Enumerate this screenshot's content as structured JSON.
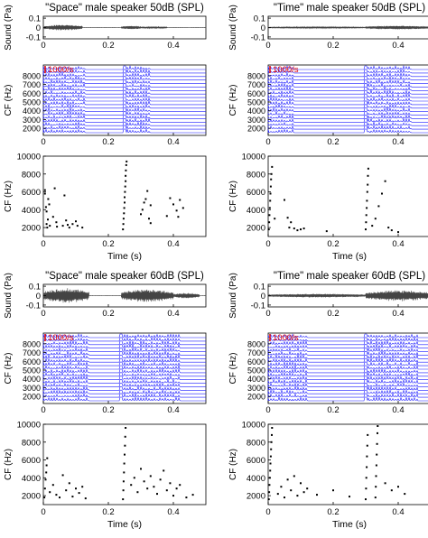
{
  "colors": {
    "waveform": "#444444",
    "rate": "#1a1aff",
    "spike": "#000000",
    "scalebar": "#e00000",
    "axis": "#000000"
  },
  "chart_data": [
    {
      "type": "figure-column",
      "title": "\"Space\" male speaker 50dB (SPL)",
      "word": "space",
      "level_db": 50,
      "sound": {
        "ylabel": "Sound (Pa)",
        "yticks": [
          0.1,
          0,
          -0.1
        ],
        "ylim": [
          -0.12,
          0.12
        ],
        "xlim": [
          0,
          0.5
        ],
        "xticks": [
          0,
          0.2,
          0.4
        ],
        "segments": [
          [
            0.0,
            0.12,
            0.03
          ],
          [
            0.24,
            0.3,
            0.02
          ],
          [
            0.3,
            0.38,
            0.01
          ]
        ]
      },
      "rates": {
        "ylabel": "CF (Hz)",
        "yticks": [
          2000,
          3000,
          4000,
          5000,
          6000,
          7000,
          8000
        ],
        "scalebar_label": "1000/s",
        "xlim": [
          0,
          0.5
        ],
        "xticks": [
          0,
          0.2,
          0.4
        ],
        "active": [
          [
            0.0,
            0.13
          ],
          [
            0.25,
            0.33
          ]
        ]
      },
      "spikes": {
        "xlabel": "Time (s)",
        "ylabel": "CF (Hz)",
        "yticks": [
          2000,
          4000,
          6000,
          8000,
          10000
        ],
        "ylim": [
          1000,
          10000
        ],
        "xlim": [
          0,
          0.5
        ],
        "xticks": [
          0,
          0.2,
          0.4
        ],
        "points": [
          [
            0.005,
            6200
          ],
          [
            0.005,
            5800
          ],
          [
            0.008,
            4300
          ],
          [
            0.01,
            3800
          ],
          [
            0.01,
            2400
          ],
          [
            0.012,
            2000
          ],
          [
            0.014,
            2900
          ],
          [
            0.015,
            5200
          ],
          [
            0.018,
            4600
          ],
          [
            0.02,
            2200
          ],
          [
            0.03,
            3200
          ],
          [
            0.035,
            6400
          ],
          [
            0.04,
            2600
          ],
          [
            0.042,
            2100
          ],
          [
            0.06,
            2200
          ],
          [
            0.065,
            5600
          ],
          [
            0.07,
            2800
          ],
          [
            0.075,
            2300
          ],
          [
            0.08,
            2000
          ],
          [
            0.09,
            2400
          ],
          [
            0.1,
            2700
          ],
          [
            0.105,
            2200
          ],
          [
            0.12,
            2000
          ],
          [
            0.245,
            1800
          ],
          [
            0.246,
            2400
          ],
          [
            0.247,
            3000
          ],
          [
            0.248,
            3600
          ],
          [
            0.249,
            4200
          ],
          [
            0.25,
            4800
          ],
          [
            0.25,
            5400
          ],
          [
            0.251,
            6000
          ],
          [
            0.252,
            6600
          ],
          [
            0.253,
            7200
          ],
          [
            0.253,
            7800
          ],
          [
            0.254,
            8400
          ],
          [
            0.255,
            9000
          ],
          [
            0.256,
            9400
          ],
          [
            0.3,
            3500
          ],
          [
            0.305,
            4000
          ],
          [
            0.31,
            4800
          ],
          [
            0.315,
            5200
          ],
          [
            0.32,
            6100
          ],
          [
            0.325,
            3000
          ],
          [
            0.33,
            2500
          ],
          [
            0.33,
            4500
          ],
          [
            0.38,
            3300
          ],
          [
            0.39,
            5300
          ],
          [
            0.4,
            4600
          ],
          [
            0.41,
            3900
          ],
          [
            0.415,
            3200
          ],
          [
            0.42,
            5100
          ],
          [
            0.43,
            4200
          ]
        ]
      }
    },
    {
      "type": "figure-column",
      "title": "\"Time\" male speaker 50dB (SPL)",
      "word": "time",
      "level_db": 50,
      "sound": {
        "ylabel": "Sound (Pa)",
        "yticks": [
          0.1,
          0,
          -0.1
        ],
        "ylim": [
          -0.12,
          0.12
        ],
        "xlim": [
          0,
          0.5
        ],
        "xticks": [
          0,
          0.2,
          0.4
        ],
        "segments": [
          [
            0.0,
            0.3,
            0.008
          ],
          [
            0.3,
            0.5,
            0.02
          ]
        ]
      },
      "rates": {
        "ylabel": "CF (Hz)",
        "yticks": [
          2000,
          3000,
          4000,
          5000,
          6000,
          7000,
          8000
        ],
        "scalebar_label": "1000/s",
        "xlim": [
          0,
          0.5
        ],
        "xticks": [
          0,
          0.2,
          0.4
        ],
        "active": [
          [
            0.0,
            0.08
          ],
          [
            0.3,
            0.44
          ]
        ]
      },
      "spikes": {
        "xlabel": "Time (s)",
        "ylabel": "CF (Hz)",
        "yticks": [
          2000,
          4000,
          6000,
          8000,
          10000
        ],
        "ylim": [
          1000,
          10000
        ],
        "xlim": [
          0,
          0.5
        ],
        "xticks": [
          0,
          0.2,
          0.4
        ],
        "points": [
          [
            0.002,
            1800
          ],
          [
            0.003,
            2600
          ],
          [
            0.004,
            3400
          ],
          [
            0.005,
            4200
          ],
          [
            0.006,
            5000
          ],
          [
            0.007,
            5800
          ],
          [
            0.008,
            6600
          ],
          [
            0.009,
            7400
          ],
          [
            0.01,
            8000
          ],
          [
            0.012,
            8800
          ],
          [
            0.02,
            3000
          ],
          [
            0.05,
            5100
          ],
          [
            0.06,
            3100
          ],
          [
            0.065,
            2000
          ],
          [
            0.07,
            2600
          ],
          [
            0.08,
            1900
          ],
          [
            0.09,
            1700
          ],
          [
            0.1,
            1800
          ],
          [
            0.11,
            1900
          ],
          [
            0.18,
            1600
          ],
          [
            0.3,
            1800
          ],
          [
            0.301,
            2600
          ],
          [
            0.302,
            3400
          ],
          [
            0.303,
            4200
          ],
          [
            0.304,
            5000
          ],
          [
            0.305,
            6000
          ],
          [
            0.306,
            6800
          ],
          [
            0.307,
            7800
          ],
          [
            0.308,
            8600
          ],
          [
            0.32,
            2200
          ],
          [
            0.33,
            3000
          ],
          [
            0.34,
            4400
          ],
          [
            0.35,
            5800
          ],
          [
            0.36,
            7200
          ],
          [
            0.37,
            2000
          ],
          [
            0.38,
            1700
          ],
          [
            0.4,
            1500
          ]
        ]
      }
    },
    {
      "type": "figure-column",
      "title": "\"Space\" male speaker 60dB (SPL)",
      "word": "space",
      "level_db": 60,
      "sound": {
        "ylabel": "Sound (Pa)",
        "yticks": [
          0.1,
          0,
          -0.1
        ],
        "ylim": [
          -0.12,
          0.12
        ],
        "xlim": [
          0,
          0.5
        ],
        "xticks": [
          0,
          0.2,
          0.4
        ],
        "segments": [
          [
            0.0,
            0.14,
            0.08
          ],
          [
            0.24,
            0.4,
            0.07
          ],
          [
            0.4,
            0.48,
            0.03
          ]
        ]
      },
      "rates": {
        "ylabel": "CF (Hz)",
        "yticks": [
          2000,
          3000,
          4000,
          5000,
          6000,
          7000,
          8000
        ],
        "scalebar_label": "1000/s",
        "xlim": [
          0,
          0.5
        ],
        "xticks": [
          0,
          0.2,
          0.4
        ],
        "active": [
          [
            0.0,
            0.14
          ],
          [
            0.24,
            0.42
          ]
        ]
      },
      "spikes": {
        "xlabel": "Time (s)",
        "ylabel": "CF (Hz)",
        "yticks": [
          2000,
          4000,
          6000,
          8000,
          10000
        ],
        "ylim": [
          1000,
          10000
        ],
        "xlim": [
          0,
          0.5
        ],
        "xticks": [
          0,
          0.2,
          0.4
        ],
        "points": [
          [
            0.003,
            1800
          ],
          [
            0.005,
            2800
          ],
          [
            0.007,
            3800
          ],
          [
            0.009,
            4600
          ],
          [
            0.01,
            5400
          ],
          [
            0.012,
            6200
          ],
          [
            0.02,
            2400
          ],
          [
            0.03,
            3200
          ],
          [
            0.04,
            2100
          ],
          [
            0.05,
            1800
          ],
          [
            0.06,
            4300
          ],
          [
            0.07,
            2600
          ],
          [
            0.08,
            3400
          ],
          [
            0.09,
            1900
          ],
          [
            0.1,
            2800
          ],
          [
            0.11,
            2300
          ],
          [
            0.12,
            3000
          ],
          [
            0.13,
            1700
          ],
          [
            0.245,
            1600
          ],
          [
            0.246,
            2600
          ],
          [
            0.247,
            3600
          ],
          [
            0.248,
            4600
          ],
          [
            0.249,
            5600
          ],
          [
            0.25,
            6600
          ],
          [
            0.251,
            7600
          ],
          [
            0.252,
            8600
          ],
          [
            0.253,
            9600
          ],
          [
            0.27,
            3200
          ],
          [
            0.28,
            4000
          ],
          [
            0.29,
            2400
          ],
          [
            0.3,
            5000
          ],
          [
            0.31,
            3600
          ],
          [
            0.32,
            2800
          ],
          [
            0.33,
            4200
          ],
          [
            0.34,
            3000
          ],
          [
            0.35,
            2200
          ],
          [
            0.36,
            3800
          ],
          [
            0.37,
            4800
          ],
          [
            0.38,
            2600
          ],
          [
            0.39,
            3400
          ],
          [
            0.4,
            2000
          ],
          [
            0.41,
            2800
          ],
          [
            0.42,
            3200
          ],
          [
            0.44,
            1800
          ],
          [
            0.46,
            2100
          ]
        ]
      }
    },
    {
      "type": "figure-column",
      "title": "\"Time\" male speaker 60dB (SPL)",
      "word": "time",
      "level_db": 60,
      "sound": {
        "ylabel": "Sound (Pa)",
        "yticks": [
          0.1,
          0,
          -0.1
        ],
        "ylim": [
          -0.12,
          0.12
        ],
        "xlim": [
          0,
          0.5
        ],
        "xticks": [
          0,
          0.2,
          0.4
        ],
        "segments": [
          [
            0.0,
            0.3,
            0.02
          ],
          [
            0.3,
            0.5,
            0.06
          ]
        ]
      },
      "rates": {
        "ylabel": "CF (Hz)",
        "yticks": [
          2000,
          3000,
          4000,
          5000,
          6000,
          7000,
          8000
        ],
        "scalebar_label": "1000/s",
        "xlim": [
          0,
          0.5
        ],
        "xticks": [
          0,
          0.2,
          0.4
        ],
        "active": [
          [
            0.0,
            0.12
          ],
          [
            0.3,
            0.46
          ]
        ]
      },
      "spikes": {
        "xlabel": "Time (s)",
        "ylabel": "CF (Hz)",
        "yticks": [
          2000,
          4000,
          6000,
          8000,
          10000
        ],
        "ylim": [
          1000,
          10000
        ],
        "xlim": [
          0,
          0.5
        ],
        "xticks": [
          0,
          0.2,
          0.4
        ],
        "points": [
          [
            0.002,
            1600
          ],
          [
            0.003,
            2400
          ],
          [
            0.004,
            3200
          ],
          [
            0.005,
            4000
          ],
          [
            0.006,
            4800
          ],
          [
            0.007,
            5600
          ],
          [
            0.008,
            6400
          ],
          [
            0.009,
            7200
          ],
          [
            0.01,
            8000
          ],
          [
            0.011,
            8800
          ],
          [
            0.012,
            9600
          ],
          [
            0.03,
            2200
          ],
          [
            0.04,
            3000
          ],
          [
            0.05,
            1800
          ],
          [
            0.06,
            3800
          ],
          [
            0.07,
            2600
          ],
          [
            0.08,
            4200
          ],
          [
            0.09,
            2000
          ],
          [
            0.1,
            3400
          ],
          [
            0.11,
            2400
          ],
          [
            0.12,
            2800
          ],
          [
            0.15,
            2100
          ],
          [
            0.2,
            2600
          ],
          [
            0.25,
            1900
          ],
          [
            0.3,
            1600
          ],
          [
            0.301,
            2800
          ],
          [
            0.302,
            4000
          ],
          [
            0.303,
            5200
          ],
          [
            0.304,
            6400
          ],
          [
            0.305,
            7600
          ],
          [
            0.306,
            8800
          ],
          [
            0.33,
            1800
          ],
          [
            0.331,
            3000
          ],
          [
            0.332,
            4200
          ],
          [
            0.333,
            5400
          ],
          [
            0.334,
            6600
          ],
          [
            0.335,
            7800
          ],
          [
            0.336,
            9000
          ],
          [
            0.337,
            9800
          ],
          [
            0.36,
            3400
          ],
          [
            0.38,
            2600
          ],
          [
            0.4,
            3000
          ],
          [
            0.42,
            2200
          ]
        ]
      }
    }
  ]
}
